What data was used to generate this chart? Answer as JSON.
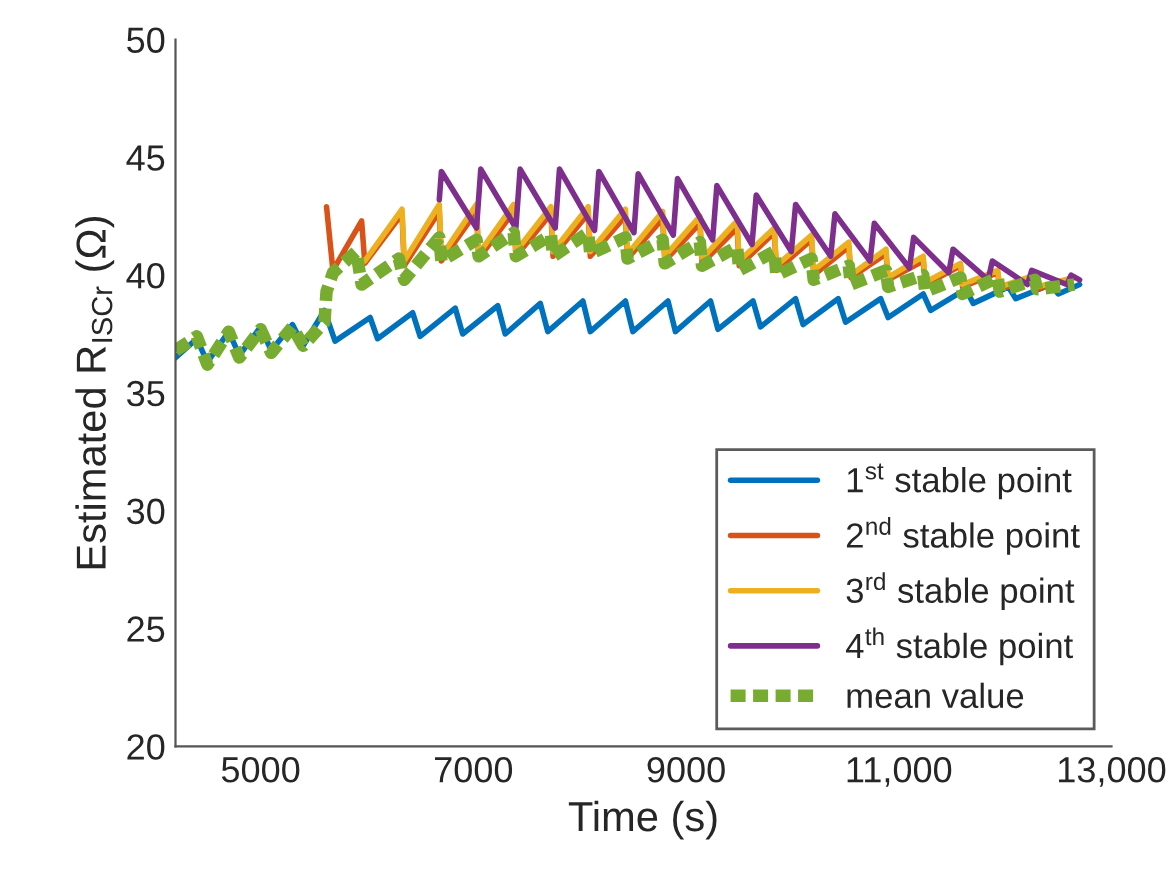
{
  "chart_data": {
    "type": "line",
    "xlabel": "Time (s)",
    "ylabel": "Estimated R$_{ISCr}$ (Ω)",
    "xlim": [
      4200,
      13000
    ],
    "ylim": [
      20,
      50
    ],
    "xticks": [
      5000,
      7000,
      9000,
      {
        "value": 11000,
        "label": "11,000"
      },
      {
        "value": 13000,
        "label": "13,000"
      }
    ],
    "yticks": [
      20,
      25,
      30,
      35,
      40,
      45,
      50
    ],
    "grid": false,
    "legend": "bottom right",
    "marker": "none",
    "series": [
      {
        "name": "1$^{st}$ stable point",
        "color": "#0072bd",
        "line_style": "solid",
        "x": [
          4200,
          4400,
          4500,
          4700,
          4800,
          5000,
          5100,
          5300,
          5400,
          5600,
          5700,
          6030,
          6100,
          6430,
          6500,
          6830,
          6900,
          7230,
          7300,
          7630,
          7700,
          8030,
          8100,
          8430,
          8500,
          8830,
          8900,
          9230,
          9300,
          9630,
          9700,
          10030,
          10100,
          10430,
          10500,
          10830,
          10900,
          11230,
          11300,
          11630,
          11700,
          12030,
          12100,
          12430,
          12500,
          12700
        ],
        "values": [
          36.5,
          37.3,
          36.3,
          37.6,
          36.6,
          37.8,
          36.8,
          37.9,
          37.0,
          38.5,
          37.2,
          38.2,
          37.3,
          38.4,
          37.4,
          38.6,
          37.5,
          38.7,
          37.5,
          38.8,
          37.6,
          38.9,
          37.6,
          38.9,
          37.6,
          38.9,
          37.6,
          38.9,
          37.7,
          38.9,
          37.8,
          39.0,
          37.9,
          39.0,
          38.0,
          39.0,
          38.2,
          39.2,
          38.5,
          39.4,
          38.8,
          39.5,
          39.0,
          39.6,
          39.2,
          39.6
        ]
      },
      {
        "name": "2$^{nd}$ stable point",
        "color": "#d95319",
        "line_style": "solid",
        "x": [
          5620,
          5680,
          5950,
          5980,
          6330,
          6350,
          6680,
          6700,
          7030,
          7050,
          7380,
          7400,
          7730,
          7750,
          8080,
          8100,
          8430,
          8450,
          8780,
          8800,
          9130,
          9150,
          9480,
          9500,
          9830,
          9850,
          10180,
          10200,
          10530,
          10550,
          10880,
          10900,
          11230,
          11250,
          11580,
          11600,
          11930,
          11950,
          12280,
          12300,
          12650
        ],
        "values": [
          42.9,
          40.2,
          42.3,
          40.5,
          42.6,
          40.4,
          42.7,
          40.6,
          42.7,
          40.7,
          42.7,
          40.8,
          42.6,
          40.8,
          42.6,
          40.8,
          42.5,
          40.7,
          42.4,
          40.6,
          42.2,
          40.5,
          42.0,
          40.4,
          41.8,
          40.2,
          41.5,
          40.0,
          41.2,
          39.9,
          40.9,
          39.8,
          40.6,
          39.6,
          40.4,
          39.5,
          40.1,
          39.4,
          39.9,
          39.4,
          39.9
        ]
      },
      {
        "name": "3$^{rd}$ stable point",
        "color": "#edb120",
        "line_style": "solid",
        "x": [
          5980,
          6330,
          6350,
          6680,
          6700,
          7030,
          7050,
          7380,
          7400,
          7730,
          7750,
          8080,
          8100,
          8430,
          8450,
          8780,
          8800,
          9130,
          9150,
          9480,
          9500,
          9830,
          9850,
          10180,
          10200,
          10530,
          10550,
          10880,
          10900,
          11230,
          11250,
          11580,
          11600,
          11930,
          11950,
          12280,
          12300,
          12650
        ],
        "values": [
          40.6,
          42.8,
          40.6,
          43.0,
          40.8,
          43.0,
          40.9,
          43.0,
          41.0,
          42.9,
          41.0,
          42.9,
          41.0,
          42.8,
          40.9,
          42.7,
          40.8,
          42.5,
          40.7,
          42.3,
          40.6,
          42.0,
          40.4,
          41.7,
          40.2,
          41.4,
          40.0,
          41.1,
          39.9,
          40.8,
          39.7,
          40.5,
          39.6,
          40.2,
          39.5,
          40.0,
          39.5,
          39.9
        ]
      },
      {
        "name": "4$^{th}$ stable point",
        "color": "#7e2f8e",
        "line_style": "solid",
        "x": [
          6680,
          6700,
          7030,
          7070,
          7400,
          7440,
          7770,
          7810,
          8140,
          8180,
          8510,
          8550,
          8880,
          8920,
          9250,
          9290,
          9620,
          9660,
          9990,
          10030,
          10360,
          10400,
          10730,
          10770,
          11100,
          11140,
          11470,
          11510,
          11840,
          11880,
          12210,
          12250,
          12580,
          12620,
          12700
        ],
        "values": [
          43.2,
          44.4,
          42.0,
          44.5,
          42.0,
          44.5,
          42.0,
          44.5,
          41.9,
          44.4,
          41.8,
          44.3,
          41.7,
          44.1,
          41.5,
          43.8,
          41.3,
          43.4,
          41.0,
          43.0,
          40.8,
          42.6,
          40.6,
          42.2,
          40.3,
          41.6,
          40.1,
          41.1,
          39.8,
          40.6,
          39.6,
          40.2,
          39.6,
          40.0,
          39.8
        ]
      },
      {
        "name": "mean value",
        "color": "#77ac30",
        "line_style": "dashed",
        "x": [
          4200,
          4400,
          4500,
          4700,
          4800,
          5000,
          5100,
          5300,
          5400,
          5600,
          5620,
          5680,
          5900,
          5950,
          6300,
          6350,
          6680,
          6700,
          7030,
          7050,
          7380,
          7400,
          7730,
          7750,
          8080,
          8100,
          8430,
          8450,
          8780,
          8800,
          9130,
          9150,
          9480,
          9500,
          9830,
          9850,
          10180,
          10200,
          10530,
          10550,
          10880,
          10900,
          11230,
          11250,
          11580,
          11600,
          11930,
          11950,
          12280,
          12300,
          12650
        ],
        "values": [
          36.8,
          37.4,
          36.2,
          37.6,
          36.5,
          37.7,
          36.7,
          37.8,
          37.0,
          38.0,
          39.3,
          40.1,
          41.0,
          39.6,
          40.7,
          39.8,
          41.6,
          40.6,
          41.5,
          40.8,
          41.8,
          40.8,
          41.7,
          40.8,
          41.8,
          40.9,
          41.6,
          40.7,
          41.5,
          40.5,
          41.4,
          40.4,
          41.2,
          40.2,
          41.0,
          40.0,
          40.7,
          39.8,
          40.4,
          39.6,
          40.2,
          39.5,
          40.0,
          39.3,
          39.9,
          39.2,
          39.9,
          39.3,
          39.8,
          39.4,
          39.6
        ]
      }
    ]
  }
}
